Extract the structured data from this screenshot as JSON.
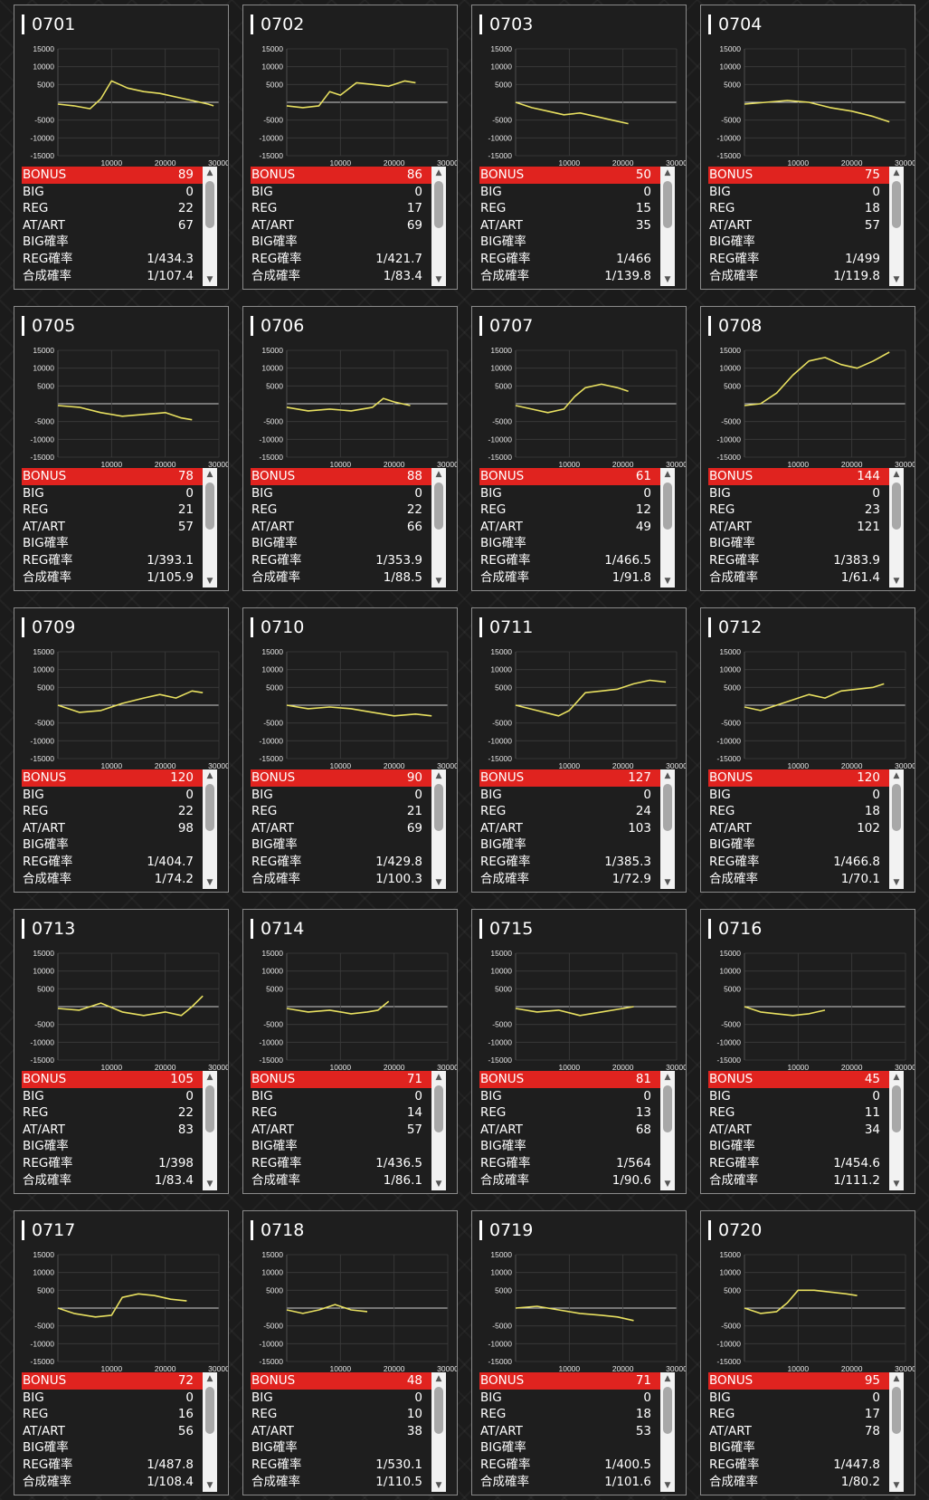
{
  "labels": {
    "bonus": "BONUS",
    "big": "BIG",
    "reg": "REG",
    "atart": "AT/ART",
    "big_rate": "BIG確率",
    "reg_rate": "REG確率",
    "total_rate": "合成確率"
  },
  "chart_axes": {
    "y_ticks": [
      "15000",
      "10000",
      "5000",
      "",
      "-5000",
      "-10000",
      "-15000"
    ],
    "x_ticks": [
      "10000",
      "20000",
      "30000"
    ],
    "ylim": [
      -15000,
      15000
    ],
    "xlim": [
      0,
      30000
    ],
    "line_color": "#e8e060",
    "grid": true
  },
  "icons": {
    "scroll_up": "▲",
    "scroll_down": "▼"
  },
  "colors": {
    "bonus_bar": "#e0231f",
    "panel": "#1e1e1e",
    "border": "#8a8a8a"
  },
  "machines": [
    {
      "id": "0701",
      "bonus": "89",
      "big": "0",
      "reg": "22",
      "atart": "67",
      "big_rate": "",
      "reg_rate": "1/434.3",
      "total_rate": "1/107.4",
      "chart_data": {
        "type": "line",
        "x": [
          0,
          3000,
          6000,
          8000,
          10000,
          13000,
          16000,
          19000,
          22000,
          25000,
          28000,
          29000
        ],
        "y": [
          -500,
          -1000,
          -1800,
          1000,
          6000,
          4000,
          3000,
          2500,
          1500,
          500,
          -500,
          -1000
        ]
      }
    },
    {
      "id": "0702",
      "bonus": "86",
      "big": "0",
      "reg": "17",
      "atart": "69",
      "big_rate": "",
      "reg_rate": "1/421.7",
      "total_rate": "1/83.4",
      "chart_data": {
        "type": "line",
        "x": [
          0,
          3000,
          6000,
          8000,
          10000,
          13000,
          16000,
          19000,
          22000,
          24000
        ],
        "y": [
          -1000,
          -1500,
          -1000,
          3000,
          2000,
          5500,
          5000,
          4500,
          6000,
          5500
        ]
      }
    },
    {
      "id": "0703",
      "bonus": "50",
      "big": "0",
      "reg": "15",
      "atart": "35",
      "big_rate": "",
      "reg_rate": "1/466",
      "total_rate": "1/139.8",
      "chart_data": {
        "type": "line",
        "x": [
          0,
          3000,
          6000,
          9000,
          12000,
          15000,
          18000,
          21000
        ],
        "y": [
          0,
          -1500,
          -2500,
          -3500,
          -3000,
          -4000,
          -5000,
          -6000
        ]
      }
    },
    {
      "id": "0704",
      "bonus": "75",
      "big": "0",
      "reg": "18",
      "atart": "57",
      "big_rate": "",
      "reg_rate": "1/499",
      "total_rate": "1/119.8",
      "chart_data": {
        "type": "line",
        "x": [
          0,
          4000,
          8000,
          12000,
          16000,
          20000,
          24000,
          27000
        ],
        "y": [
          -500,
          0,
          500,
          0,
          -1500,
          -2500,
          -4000,
          -5500
        ]
      }
    },
    {
      "id": "0705",
      "bonus": "78",
      "big": "0",
      "reg": "21",
      "atart": "57",
      "big_rate": "",
      "reg_rate": "1/393.1",
      "total_rate": "1/105.9",
      "chart_data": {
        "type": "line",
        "x": [
          0,
          4000,
          8000,
          12000,
          16000,
          20000,
          23000,
          25000
        ],
        "y": [
          -500,
          -1000,
          -2500,
          -3500,
          -3000,
          -2500,
          -4000,
          -4500
        ]
      }
    },
    {
      "id": "0706",
      "bonus": "88",
      "big": "0",
      "reg": "22",
      "atart": "66",
      "big_rate": "",
      "reg_rate": "1/353.9",
      "total_rate": "1/88.5",
      "chart_data": {
        "type": "line",
        "x": [
          0,
          4000,
          8000,
          12000,
          16000,
          18000,
          20000,
          23000
        ],
        "y": [
          -1000,
          -2000,
          -1500,
          -2000,
          -1000,
          1500,
          500,
          -500
        ]
      }
    },
    {
      "id": "0707",
      "bonus": "61",
      "big": "0",
      "reg": "12",
      "atart": "49",
      "big_rate": "",
      "reg_rate": "1/466.5",
      "total_rate": "1/91.8",
      "chart_data": {
        "type": "line",
        "x": [
          0,
          3000,
          6000,
          9000,
          11000,
          13000,
          16000,
          19000,
          21000
        ],
        "y": [
          -500,
          -1500,
          -2500,
          -1500,
          2000,
          4500,
          5500,
          4500,
          3500
        ]
      }
    },
    {
      "id": "0708",
      "bonus": "144",
      "big": "0",
      "reg": "23",
      "atart": "121",
      "big_rate": "",
      "reg_rate": "1/383.9",
      "total_rate": "1/61.4",
      "chart_data": {
        "type": "line",
        "x": [
          0,
          3000,
          6000,
          9000,
          12000,
          15000,
          18000,
          21000,
          24000,
          27000
        ],
        "y": [
          -500,
          0,
          3000,
          8000,
          12000,
          13000,
          11000,
          10000,
          12000,
          14500
        ]
      }
    },
    {
      "id": "0709",
      "bonus": "120",
      "big": "0",
      "reg": "22",
      "atart": "98",
      "big_rate": "",
      "reg_rate": "1/404.7",
      "total_rate": "1/74.2",
      "chart_data": {
        "type": "line",
        "x": [
          0,
          4000,
          8000,
          12000,
          16000,
          19000,
          22000,
          25000,
          27000
        ],
        "y": [
          0,
          -2000,
          -1500,
          500,
          2000,
          3000,
          2000,
          4000,
          3500
        ]
      }
    },
    {
      "id": "0710",
      "bonus": "90",
      "big": "0",
      "reg": "21",
      "atart": "69",
      "big_rate": "",
      "reg_rate": "1/429.8",
      "total_rate": "1/100.3",
      "chart_data": {
        "type": "line",
        "x": [
          0,
          4000,
          8000,
          12000,
          16000,
          20000,
          24000,
          27000
        ],
        "y": [
          0,
          -1000,
          -500,
          -1000,
          -2000,
          -3000,
          -2500,
          -3000
        ]
      }
    },
    {
      "id": "0711",
      "bonus": "127",
      "big": "0",
      "reg": "24",
      "atart": "103",
      "big_rate": "",
      "reg_rate": "1/385.3",
      "total_rate": "1/72.9",
      "chart_data": {
        "type": "line",
        "x": [
          0,
          4000,
          8000,
          10000,
          13000,
          16000,
          19000,
          22000,
          25000,
          28000
        ],
        "y": [
          0,
          -1500,
          -3000,
          -1500,
          3500,
          4000,
          4500,
          6000,
          7000,
          6500
        ]
      }
    },
    {
      "id": "0712",
      "bonus": "120",
      "big": "0",
      "reg": "18",
      "atart": "102",
      "big_rate": "",
      "reg_rate": "1/466.8",
      "total_rate": "1/70.1",
      "chart_data": {
        "type": "line",
        "x": [
          0,
          3000,
          6000,
          9000,
          12000,
          15000,
          18000,
          21000,
          24000,
          26000
        ],
        "y": [
          -500,
          -1500,
          0,
          1500,
          3000,
          2000,
          4000,
          4500,
          5000,
          6000
        ]
      }
    },
    {
      "id": "0713",
      "bonus": "105",
      "big": "0",
      "reg": "22",
      "atart": "83",
      "big_rate": "",
      "reg_rate": "1/398",
      "total_rate": "1/83.4",
      "chart_data": {
        "type": "line",
        "x": [
          0,
          4000,
          8000,
          12000,
          16000,
          20000,
          23000,
          25000,
          27000
        ],
        "y": [
          -500,
          -1000,
          1000,
          -1500,
          -2500,
          -1500,
          -2500,
          0,
          3000
        ]
      }
    },
    {
      "id": "0714",
      "bonus": "71",
      "big": "0",
      "reg": "14",
      "atart": "57",
      "big_rate": "",
      "reg_rate": "1/436.5",
      "total_rate": "1/86.1",
      "chart_data": {
        "type": "line",
        "x": [
          0,
          4000,
          8000,
          12000,
          15000,
          17000,
          19000
        ],
        "y": [
          -500,
          -1500,
          -1000,
          -2000,
          -1500,
          -1000,
          1500
        ]
      }
    },
    {
      "id": "0715",
      "bonus": "81",
      "big": "0",
      "reg": "13",
      "atart": "68",
      "big_rate": "",
      "reg_rate": "1/564",
      "total_rate": "1/90.6",
      "chart_data": {
        "type": "line",
        "x": [
          0,
          4000,
          8000,
          12000,
          16000,
          20000,
          22000
        ],
        "y": [
          -500,
          -1500,
          -1000,
          -2500,
          -1500,
          -500,
          0
        ]
      }
    },
    {
      "id": "0716",
      "bonus": "45",
      "big": "0",
      "reg": "11",
      "atart": "34",
      "big_rate": "",
      "reg_rate": "1/454.6",
      "total_rate": "1/111.2",
      "chart_data": {
        "type": "line",
        "x": [
          0,
          3000,
          6000,
          9000,
          12000,
          15000
        ],
        "y": [
          0,
          -1500,
          -2000,
          -2500,
          -2000,
          -1000
        ]
      }
    },
    {
      "id": "0717",
      "bonus": "72",
      "big": "0",
      "reg": "16",
      "atart": "56",
      "big_rate": "",
      "reg_rate": "1/487.8",
      "total_rate": "1/108.4",
      "chart_data": {
        "type": "line",
        "x": [
          0,
          3000,
          7000,
          10000,
          12000,
          15000,
          18000,
          21000,
          24000
        ],
        "y": [
          0,
          -1500,
          -2500,
          -2000,
          3000,
          4000,
          3500,
          2500,
          2000
        ]
      }
    },
    {
      "id": "0718",
      "bonus": "48",
      "big": "0",
      "reg": "10",
      "atart": "38",
      "big_rate": "",
      "reg_rate": "1/530.1",
      "total_rate": "1/110.5",
      "chart_data": {
        "type": "line",
        "x": [
          0,
          3000,
          6000,
          9000,
          12000,
          15000
        ],
        "y": [
          -500,
          -1500,
          -500,
          1000,
          -500,
          -1000
        ]
      }
    },
    {
      "id": "0719",
      "bonus": "71",
      "big": "0",
      "reg": "18",
      "atart": "53",
      "big_rate": "",
      "reg_rate": "1/400.5",
      "total_rate": "1/101.6",
      "chart_data": {
        "type": "line",
        "x": [
          0,
          4000,
          8000,
          12000,
          16000,
          19000,
          22000
        ],
        "y": [
          0,
          500,
          -500,
          -1500,
          -2000,
          -2500,
          -3500
        ]
      }
    },
    {
      "id": "0720",
      "bonus": "95",
      "big": "0",
      "reg": "17",
      "atart": "78",
      "big_rate": "",
      "reg_rate": "1/447.8",
      "total_rate": "1/80.2",
      "chart_data": {
        "type": "line",
        "x": [
          0,
          3000,
          6000,
          8000,
          10000,
          13000,
          16000,
          19000,
          21000
        ],
        "y": [
          0,
          -1500,
          -1000,
          1500,
          5000,
          5000,
          4500,
          4000,
          3500
        ]
      }
    }
  ]
}
